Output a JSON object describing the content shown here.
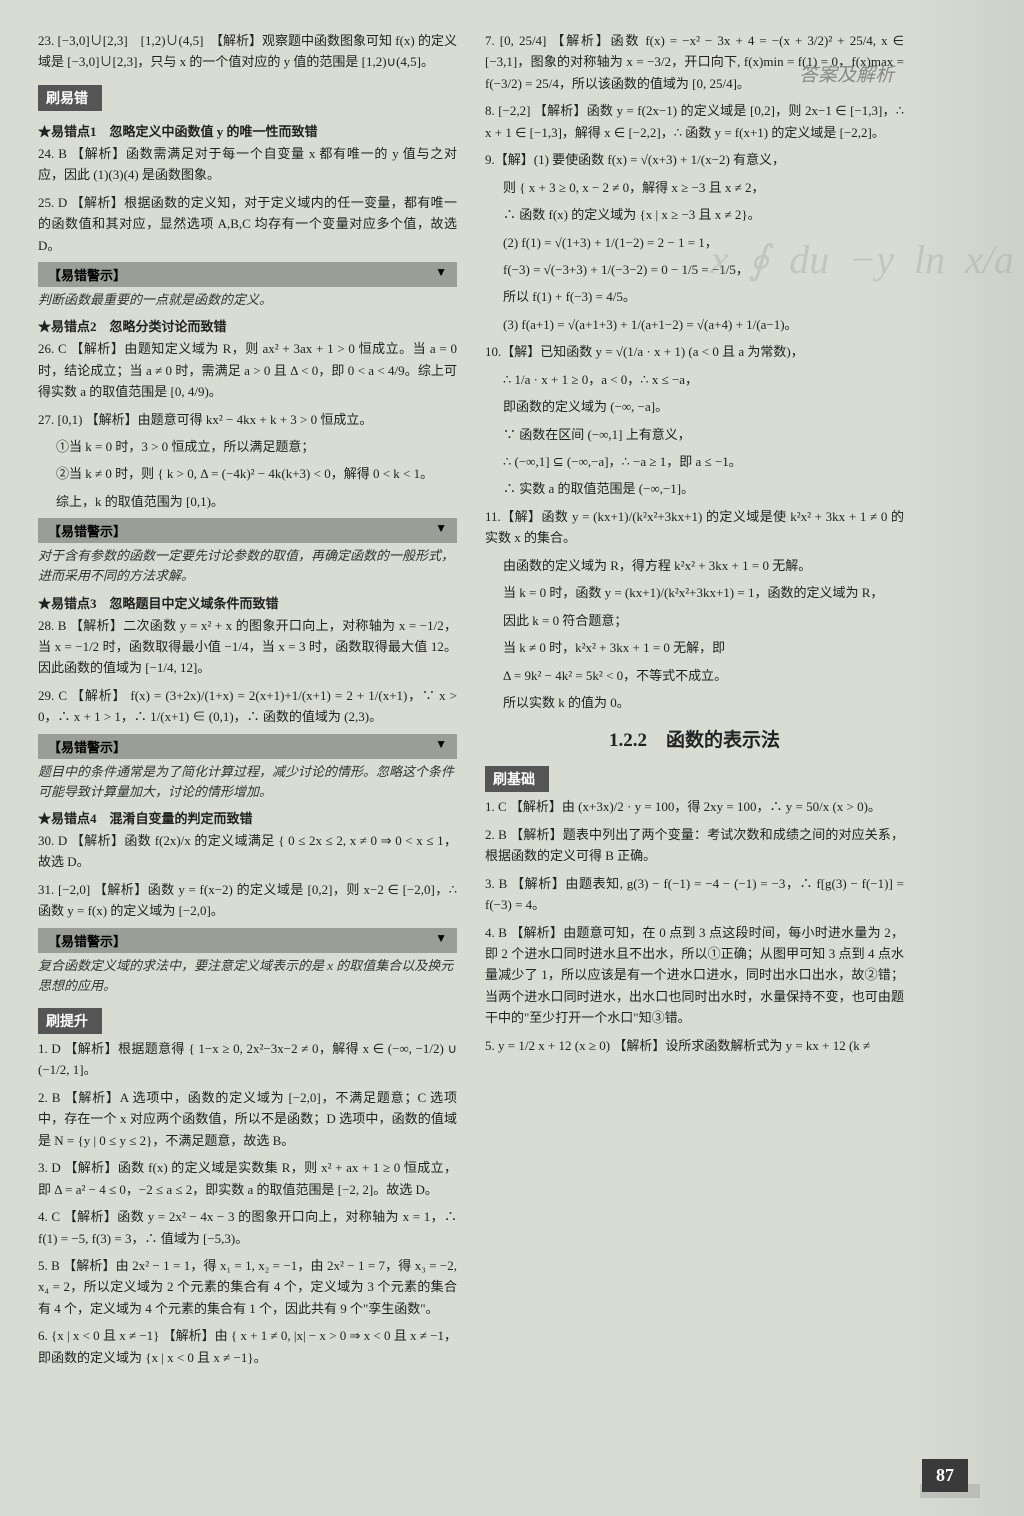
{
  "header": "答案及解析",
  "page_number": "87",
  "sections": {
    "shua_yicuo": "刷易错",
    "shua_tisheng": "刷提升",
    "shua_jichu": "刷基础"
  },
  "warning_label": "【易错警示】",
  "star_points": {
    "p1": "★易错点1　忽略定义中函数值 y 的唯一性而致错",
    "p2": "★易错点2　忽略分类讨论而致错",
    "p3": "★易错点3　忽略题目中定义域条件而致错",
    "p4": "★易错点4　混淆自变量的判定而致错"
  },
  "subsection_title": "1.2.2　函数的表示法",
  "tags": {
    "jiexi": "【解析】",
    "jie": "【解】"
  },
  "warnings": {
    "w1": "判断函数最重要的一点就是函数的定义。",
    "w2": "对于含有参数的函数一定要先讨论参数的取值，再确定函数的一般形式，进而采用不同的方法求解。",
    "w3": "题目中的条件通常是为了简化计算过程，减少讨论的情形。忽略这个条件可能导致计算量加大，讨论的情形增加。",
    "w4": "复合函数定义域的求法中，要注意定义域表示的是 x 的取值集合以及换元思想的应用。"
  },
  "left": {
    "q23": "23. [−3,0]∪[2,3]　[1,2)∪(4,5]　【解析】观察题中函数图象可知 f(x) 的定义域是 [−3,0]∪[2,3]，只与 x 的一个值对应的 y 值的范围是 [1,2)∪(4,5]。",
    "q24": "24. B 【解析】函数需满足对于每一个自变量 x 都有唯一的 y 值与之对应，因此 (1)(3)(4) 是函数图象。",
    "q25": "25. D 【解析】根据函数的定义知，对于定义域内的任一变量，都有唯一的函数值和其对应，显然选项 A,B,C 均存有一个变量对应多个值，故选 D。",
    "q26": "26. C 【解析】由题知定义域为 R，则 ax² + 3ax + 1 > 0 恒成立。当 a = 0 时，结论成立；当 a ≠ 0 时，需满足 a > 0 且 Δ < 0，即 0 < a < 4/9。综上可得实数 a 的取值范围是 [0, 4/9)。",
    "q27": "27. [0,1) 【解析】由题意可得 kx² − 4kx + k + 3 > 0 恒成立。",
    "q27a": "①当 k = 0 时，3 > 0 恒成立，所以满足题意；",
    "q27b": "②当 k ≠ 0 时，则 { k > 0, Δ = (−4k)² − 4k(k+3) < 0，解得 0 < k < 1。",
    "q27c": "综上，k 的取值范围为 [0,1)。",
    "q28": "28. B 【解析】二次函数 y = x² + x 的图象开口向上，对称轴为 x = −1/2，当 x = −1/2 时，函数取得最小值 −1/4，当 x = 3 时，函数取得最大值 12。因此函数的值域为 [−1/4, 12]。",
    "q29": "29. C 【解析】 f(x) = (3+2x)/(1+x) = 2(x+1)+1/(x+1) = 2 + 1/(x+1)，∵ x > 0，∴ x + 1 > 1，∴ 1/(x+1) ∈ (0,1)，∴ 函数的值域为 (2,3)。",
    "q30": "30. D 【解析】函数 f(2x)/x 的定义域满足 { 0 ≤ 2x ≤ 2, x ≠ 0 ⇒ 0 < x ≤ 1，故选 D。",
    "q31": "31. [−2,0] 【解析】函数 y = f(x−2) 的定义域是 [0,2]，则 x−2 ∈ [−2,0]，∴ 函数 y = f(x) 的定义域为 [−2,0]。"
  },
  "tisheng": {
    "q1": "1. D 【解析】根据题意得 { 1−x ≥ 0, 2x²−3x−2 ≠ 0，解得 x ∈ (−∞, −1/2) ∪ (−1/2, 1]。",
    "q2": "2. B 【解析】A 选项中，函数的定义域为 [−2,0]，不满足题意；C 选项中，存在一个 x 对应两个函数值，所以不是函数；D 选项中，函数的值域是 N = {y | 0 ≤ y ≤ 2}，不满足题意，故选 B。",
    "q3": "3. D 【解析】函数 f(x) 的定义域是实数集 R，则 x² + ax + 1 ≥ 0 恒成立，即 Δ = a² − 4 ≤ 0，−2 ≤ a ≤ 2，即实数 a 的取值范围是 [−2, 2]。故选 D。",
    "q4": "4. C 【解析】函数 y = 2x² − 4x − 3 的图象开口向上，对称轴为 x = 1，∴ f(1) = −5, f(3) = 3，∴ 值域为 [−5,3)。"
  },
  "right": {
    "q5": "5. B 【解析】由 2x² − 1 = 1，得 x₁ = 1, x₂ = −1，由 2x² − 1 = 7，得 x₃ = −2, x₄ = 2，所以定义域为 2 个元素的集合有 4 个，定义域为 3 个元素的集合有 4 个，定义域为 4 个元素的集合有 1 个，因此共有 9 个\"孪生函数\"。",
    "q6": "6. {x | x < 0 且 x ≠ −1} 【解析】由 { x + 1 ≠ 0, |x| − x > 0 ⇒ x < 0 且 x ≠ −1，即函数的定义域为 {x | x < 0 且 x ≠ −1}。",
    "q7": "7. [0, 25/4] 【解析】函数 f(x) = −x² − 3x + 4 = −(x + 3/2)² + 25/4, x ∈ [−3,1]，图象的对称轴为 x = −3/2，开口向下, f(x)min = f(1) = 0，f(x)max = f(−3/2) = 25/4，所以该函数的值域为 [0, 25/4]。",
    "q8": "8. [−2,2] 【解析】函数 y = f(2x−1) 的定义域是 [0,2]，则 2x−1 ∈ [−1,3]，∴ x + 1 ∈ [−1,3]，解得 x ∈ [−2,2]，∴ 函数 y = f(x+1) 的定义域是 [−2,2]。",
    "q9": "9.【解】(1) 要使函数 f(x) = √(x+3) + 1/(x−2) 有意义，",
    "q9a": "则 { x + 3 ≥ 0, x − 2 ≠ 0，解得 x ≥ −3 且 x ≠ 2，",
    "q9b": "∴ 函数 f(x) 的定义域为 {x | x ≥ −3 且 x ≠ 2}。",
    "q9c": "(2) f(1) = √(1+3) + 1/(1−2) = 2 − 1 = 1，",
    "q9d": "f(−3) = √(−3+3) + 1/(−3−2) = 0 − 1/5 = −1/5，",
    "q9e": "所以 f(1) + f(−3) = 4/5。",
    "q9f": "(3) f(a+1) = √(a+1+3) + 1/(a+1−2) = √(a+4) + 1/(a−1)。",
    "q10": "10.【解】已知函数 y = √(1/a · x + 1) (a < 0 且 a 为常数)，",
    "q10a": "∴ 1/a · x + 1 ≥ 0，a < 0，∴ x ≤ −a，",
    "q10b": "即函数的定义域为 (−∞, −a]。",
    "q10c": "∵ 函数在区间 (−∞,1] 上有意义，",
    "q10d": "∴ (−∞,1] ⊆ (−∞,−a]，∴ −a ≥ 1，即 a ≤ −1。",
    "q10e": "∴ 实数 a 的取值范围是 (−∞,−1]。",
    "q11": "11.【解】函数 y = (kx+1)/(k²x²+3kx+1) 的定义域是使 k²x² + 3kx + 1 ≠ 0 的实数 x 的集合。",
    "q11a": "由函数的定义域为 R，得方程 k²x² + 3kx + 1 = 0 无解。",
    "q11b": "当 k = 0 时，函数 y = (kx+1)/(k²x²+3kx+1) = 1，函数的定义域为 R，",
    "q11c": "因此 k = 0 符合题意；",
    "q11d": "当 k ≠ 0 时，k²x² + 3kx + 1 = 0 无解，即",
    "q11e": "Δ = 9k² − 4k² = 5k² < 0，不等式不成立。",
    "q11f": "所以实数 k 的值为 0。"
  },
  "jichu": {
    "q1": "1. C 【解析】由 (x+3x)/2 · y = 100，得 2xy = 100，∴ y = 50/x (x > 0)。",
    "q2": "2. B 【解析】题表中列出了两个变量：考试次数和成绩之间的对应关系，根据函数的定义可得 B 正确。",
    "q3": "3. B 【解析】由题表知, g(3) − f(−1) = −4 − (−1) = −3，∴ f[g(3) − f(−1)] = f(−3) = 4。",
    "q4": "4. B 【解析】由题意可知，在 0 点到 3 点这段时间，每小时进水量为 2，即 2 个进水口同时进水且不出水，所以①正确；从图甲可知 3 点到 4 点水量减少了 1，所以应该是有一个进水口进水，同时出水口出水，故②错；当两个进水口同时进水，出水口也同时出水时，水量保持不变，也可由题干中的\"至少打开一个水口\"知③错。",
    "q5": "5. y = 1/2 x + 12 (x ≥ 0) 【解析】设所求函数解析式为 y = kx + 12 (k ≠"
  }
}
